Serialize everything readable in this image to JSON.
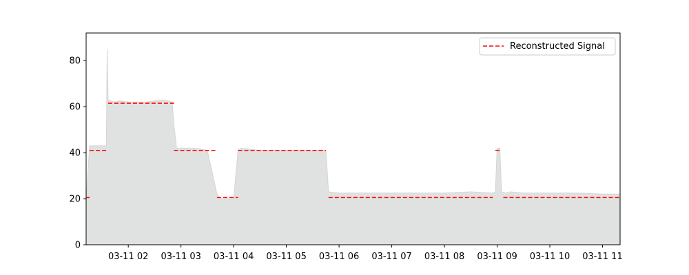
{
  "chart_data": {
    "type": "area",
    "title": "",
    "xlabel": "",
    "ylabel": "",
    "xlim": [
      "03-11 01:12",
      "03-11 11:20"
    ],
    "ylim": [
      0,
      92
    ],
    "grid": false,
    "legend_position": "upper right",
    "x_tick_labels": [
      "03-11 02",
      "03-11 03",
      "03-11 04",
      "03-11 05",
      "03-11 06",
      "03-11 07",
      "03-11 08",
      "03-11 09",
      "03-11 10",
      "03-11 11"
    ],
    "y_tick_labels": [
      "0",
      "20",
      "40",
      "60",
      "80"
    ],
    "y_ticks": [
      0,
      20,
      40,
      60,
      80
    ],
    "series": [
      {
        "kind": "area",
        "color": "#e0e1e1",
        "x": [
          "03-11 01:12",
          "03-11 01:16",
          "03-11 01:29",
          "03-11 01:35",
          "03-11 01:36",
          "03-11 01:37",
          "03-11 01:40",
          "03-11 01:45",
          "03-11 01:50",
          "03-11 02:00",
          "03-11 02:20",
          "03-11 02:40",
          "03-11 02:50",
          "03-11 02:52",
          "03-11 02:55",
          "03-11 03:00",
          "03-11 03:15",
          "03-11 03:30",
          "03-11 03:41",
          "03-11 03:45",
          "03-11 04:00",
          "03-11 04:05",
          "03-11 04:08",
          "03-11 04:30",
          "03-11 05:00",
          "03-11 05:30",
          "03-11 05:45",
          "03-11 05:48",
          "03-11 06:00",
          "03-11 06:30",
          "03-11 07:00",
          "03-11 07:30",
          "03-11 08:00",
          "03-11 08:30",
          "03-11 08:55",
          "03-11 08:58",
          "03-11 09:00",
          "03-11 09:03",
          "03-11 09:05",
          "03-11 09:10",
          "03-11 09:15",
          "03-11 09:30",
          "03-11 10:00",
          "03-11 10:30",
          "03-11 11:00",
          "03-11 11:20"
        ],
        "values": [
          20,
          43,
          43,
          43,
          85,
          63,
          62.5,
          62,
          62.5,
          62,
          62,
          63,
          62,
          52,
          42,
          42,
          42,
          41,
          22,
          20,
          20,
          41,
          42,
          41,
          41,
          41,
          41,
          23,
          22.5,
          22.5,
          22.5,
          22.5,
          22.5,
          23,
          22.5,
          23,
          42,
          42,
          23,
          22.5,
          23,
          22.5,
          22.5,
          22.5,
          22,
          22
        ]
      },
      {
        "name": "Reconstructed Signal",
        "kind": "line",
        "style": "dashed",
        "color": "#ff0000",
        "segments": [
          {
            "x": [
              "03-11 01:12",
              "03-11 01:16"
            ],
            "y": 20.5
          },
          {
            "x": [
              "03-11 01:16",
              "03-11 01:35"
            ],
            "y": 41
          },
          {
            "x": [
              "03-11 01:37",
              "03-11 02:52"
            ],
            "y": 61.5
          },
          {
            "x": [
              "03-11 02:52",
              "03-11 03:41"
            ],
            "y": 41
          },
          {
            "x": [
              "03-11 03:41",
              "03-11 04:05"
            ],
            "y": 20.5
          },
          {
            "x": [
              "03-11 04:05",
              "03-11 05:45"
            ],
            "y": 41
          },
          {
            "x": [
              "03-11 05:48",
              "03-11 08:55"
            ],
            "y": 20.5
          },
          {
            "x": [
              "03-11 08:58",
              "03-11 09:05"
            ],
            "y": 41
          },
          {
            "x": [
              "03-11 09:07",
              "03-11 11:20"
            ],
            "y": 20.5
          }
        ]
      }
    ]
  }
}
